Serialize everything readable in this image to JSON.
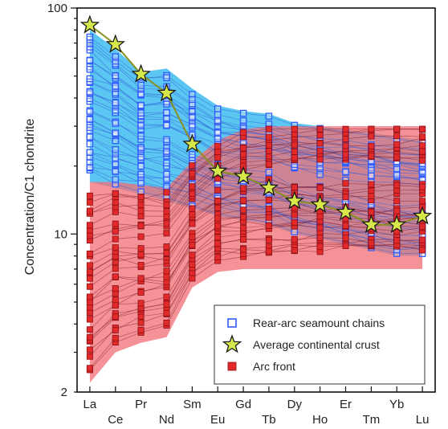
{
  "chart_data": {
    "type": "line",
    "ylabel": "Concentration/C1 chondrite",
    "xlabel": "",
    "yscale": "log",
    "ylim": [
      2,
      100
    ],
    "yticks": [
      "2",
      "10",
      "100"
    ],
    "categories": [
      "La",
      "Ce",
      "Pr",
      "Nd",
      "Sm",
      "Eu",
      "Gd",
      "Tb",
      "Dy",
      "Ho",
      "Er",
      "Tm",
      "Yb",
      "Lu"
    ],
    "series": [
      {
        "name": "Rear-arc seamount chains",
        "marker": "open-square",
        "color": "#2f5bff",
        "envelope_color": "#3fbcf0",
        "envelope_upper": [
          80,
          66,
          52,
          54,
          44,
          37,
          35,
          34,
          31,
          30,
          29,
          28,
          27,
          26
        ],
        "envelope_lower": [
          17,
          16,
          15,
          14,
          13,
          12,
          11.5,
          11,
          10,
          9.5,
          9,
          8.5,
          8,
          8
        ]
      },
      {
        "name": "Average continental crust",
        "marker": "star",
        "color": "#d7e84a",
        "values": [
          84,
          69,
          51,
          42,
          25,
          19,
          18,
          16,
          14,
          13.5,
          12.5,
          11,
          11,
          12
        ]
      },
      {
        "name": "Arc front",
        "marker": "filled-square",
        "color": "#e22a2a",
        "envelope_color": "#f26e74",
        "envelope_upper": [
          17,
          17,
          16.5,
          16,
          21,
          26,
          29,
          30,
          30,
          30,
          30,
          30,
          30,
          30
        ],
        "envelope_lower": [
          2.2,
          3.0,
          3.3,
          3.5,
          5.8,
          6.8,
          7.0,
          7.0,
          7.0,
          7.0,
          7.0,
          7.0,
          7.0,
          7.0
        ]
      }
    ],
    "legend_position": "bottom-right",
    "grid": false
  },
  "legend": {
    "items": [
      "Rear-arc seamount chains",
      "Average continental crust",
      "Arc front"
    ]
  }
}
